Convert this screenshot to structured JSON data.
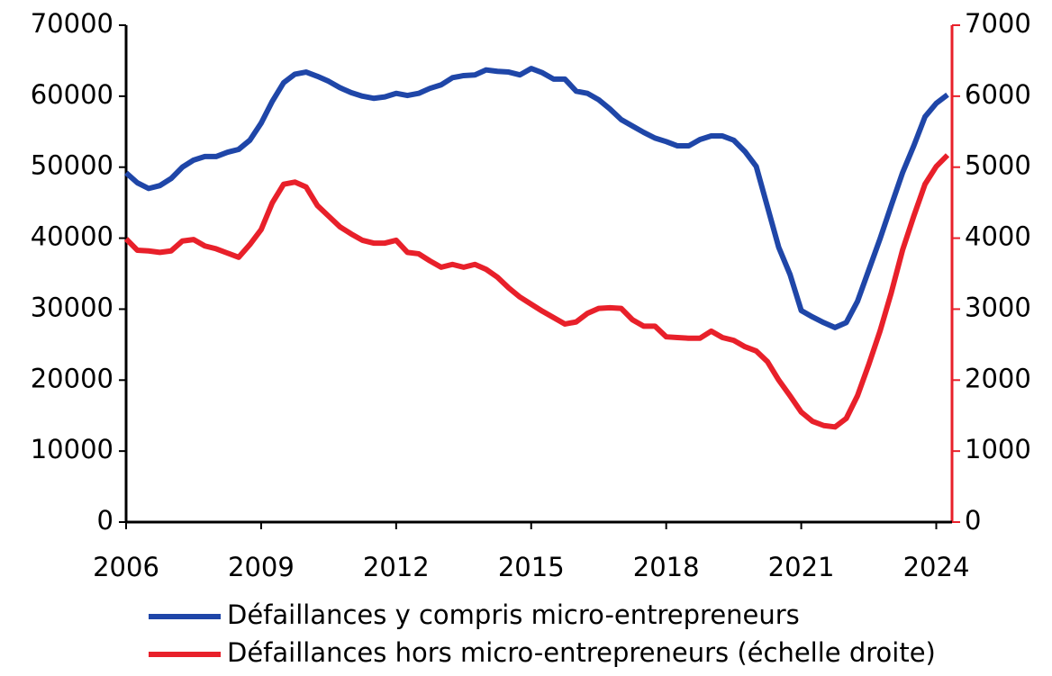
{
  "chart_data": {
    "type": "line",
    "x": [
      2006,
      2006.25,
      2006.5,
      2006.75,
      2007,
      2007.25,
      2007.5,
      2007.75,
      2008,
      2008.25,
      2008.5,
      2008.75,
      2009,
      2009.25,
      2009.5,
      2009.75,
      2010,
      2010.25,
      2010.5,
      2010.75,
      2011,
      2011.25,
      2011.5,
      2011.75,
      2012,
      2012.25,
      2012.5,
      2012.75,
      2013,
      2013.25,
      2013.5,
      2013.75,
      2014,
      2014.25,
      2014.5,
      2014.75,
      2015,
      2015.25,
      2015.5,
      2015.75,
      2016,
      2016.25,
      2016.5,
      2016.75,
      2017,
      2017.25,
      2017.5,
      2017.75,
      2018,
      2018.25,
      2018.5,
      2018.75,
      2019,
      2019.25,
      2019.5,
      2019.75,
      2020,
      2020.25,
      2020.5,
      2020.75,
      2021,
      2021.25,
      2021.5,
      2021.75,
      2022,
      2022.25,
      2022.5,
      2022.75,
      2023,
      2023.25,
      2023.5,
      2023.75,
      2024,
      2024.25
    ],
    "series": [
      {
        "name": "Défaillances y compris micro-entrepreneurs",
        "color": "#1f46a8",
        "axis": "y",
        "values": [
          49200,
          47800,
          47000,
          47400,
          48400,
          50000,
          51000,
          51500,
          51500,
          52100,
          52500,
          53800,
          56200,
          59300,
          61900,
          63100,
          63400,
          62800,
          62100,
          61200,
          60500,
          60000,
          59700,
          59900,
          60400,
          60100,
          60400,
          61100,
          61600,
          62600,
          62900,
          63000,
          63700,
          63500,
          63400,
          63000,
          63900,
          63300,
          62400,
          62400,
          60700,
          60400,
          59500,
          58200,
          56700,
          55800,
          54900,
          54100,
          53600,
          53000,
          53000,
          53900,
          54400,
          54400,
          53800,
          52200,
          50100,
          44400,
          38700,
          34900,
          29800,
          28900,
          28100,
          27400,
          28100,
          31100,
          35500,
          39900,
          44600,
          49200,
          53000,
          57100,
          59000,
          60200
        ]
      },
      {
        "name": "Défaillances hors micro-entrepreneurs (échelle droite)",
        "color": "#e8202a",
        "axis": "y2",
        "values": [
          3990,
          3830,
          3820,
          3800,
          3820,
          3960,
          3980,
          3890,
          3850,
          3790,
          3730,
          3910,
          4120,
          4500,
          4760,
          4790,
          4720,
          4460,
          4310,
          4160,
          4060,
          3970,
          3930,
          3930,
          3970,
          3800,
          3780,
          3680,
          3590,
          3630,
          3590,
          3630,
          3560,
          3450,
          3300,
          3170,
          3070,
          2970,
          2880,
          2790,
          2820,
          2940,
          3010,
          3020,
          3010,
          2850,
          2760,
          2760,
          2610,
          2600,
          2590,
          2590,
          2690,
          2600,
          2560,
          2470,
          2410,
          2260,
          2000,
          1780,
          1550,
          1420,
          1360,
          1340,
          1460,
          1780,
          2220,
          2690,
          3230,
          3830,
          4310,
          4760,
          5010,
          5170
        ]
      }
    ],
    "xlim": [
      2006,
      2024.35
    ],
    "xticks": [
      2006,
      2009,
      2012,
      2015,
      2018,
      2021,
      2024
    ],
    "ylim": [
      0,
      70000
    ],
    "yticks": [
      0,
      10000,
      20000,
      30000,
      40000,
      50000,
      60000,
      70000
    ],
    "y2lim": [
      0,
      7000
    ],
    "y2ticks": [
      0,
      1000,
      2000,
      3000,
      4000,
      5000,
      6000,
      7000
    ],
    "y2color": "#e8202a",
    "grid": false
  }
}
